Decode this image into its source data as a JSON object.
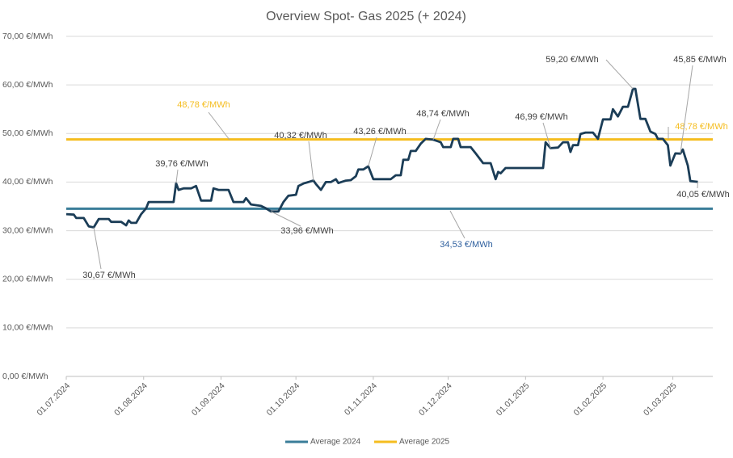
{
  "chart_data": {
    "type": "line",
    "title": "Overview Spot- Gas 2025 (+ 2024)",
    "xlim": [
      "01.07.2024",
      "17.03.2025"
    ],
    "xticks": [
      "01.07.2024",
      "01.08.2024",
      "01.09.2024",
      "01.10.2024",
      "01.11.2024",
      "01.12.2024",
      "01.01.2025",
      "01.02.2025",
      "01.03.2025"
    ],
    "ylim": [
      0,
      70
    ],
    "yticks": [
      {
        "value": 0,
        "label": "0,00 €/MWh"
      },
      {
        "value": 10,
        "label": "10,00 €/MWh"
      },
      {
        "value": 20,
        "label": "20,00 €/MWh"
      },
      {
        "value": 30,
        "label": "30,00 €/MWh"
      },
      {
        "value": 40,
        "label": "40,00 €/MWh"
      },
      {
        "value": 50,
        "label": "50,00 €/MWh"
      },
      {
        "value": 60,
        "label": "60,00 €/MWh"
      },
      {
        "value": 70,
        "label": "70,00 €/MWh"
      }
    ],
    "grid": true,
    "series": [
      {
        "color": "#1b3d57",
        "x": [
          "01.07.2024",
          "04.07.2024",
          "05.07.2024",
          "08.07.2024",
          "10.07.2024",
          "12.07.2024",
          "14.07.2024",
          "18.07.2024",
          "19.07.2024",
          "23.07.2024",
          "25.07.2024",
          "26.07.2024",
          "27.07.2024",
          "29.07.2024",
          "31.07.2024",
          "02.08.2024",
          "03.08.2024",
          "13.08.2024",
          "14.08.2024",
          "15.08.2024",
          "17.08.2024",
          "20.08.2024",
          "22.08.2024",
          "24.08.2024",
          "28.08.2024",
          "29.08.2024",
          "31.08.2024",
          "04.09.2024",
          "06.09.2024",
          "10.09.2024",
          "11.09.2024",
          "13.09.2024",
          "17.09.2024",
          "19.09.2024",
          "21.09.2024",
          "24.09.2024",
          "26.09.2024",
          "28.09.2024",
          "01.10.2024",
          "02.10.2024",
          "04.10.2024",
          "08.10.2024",
          "09.10.2024",
          "11.10.2024",
          "13.10.2024",
          "15.10.2024",
          "17.10.2024",
          "18.10.2024",
          "21.10.2024",
          "23.10.2024",
          "25.10.2024",
          "26.10.2024",
          "28.10.2024",
          "30.10.2024",
          "01.11.2024",
          "08.11.2024",
          "10.11.2024",
          "12.11.2024",
          "13.11.2024",
          "15.11.2024",
          "16.11.2024",
          "18.11.2024",
          "20.11.2024",
          "22.11.2024",
          "25.11.2024",
          "28.11.2024",
          "29.11.2024",
          "02.12.2024",
          "03.12.2024",
          "05.12.2024",
          "06.12.2024",
          "10.12.2024",
          "12.12.2024",
          "15.12.2024",
          "18.12.2024",
          "20.12.2024",
          "21.12.2024",
          "22.12.2024",
          "24.12.2024",
          "08.01.2025",
          "09.01.2025",
          "11.01.2025",
          "14.01.2025",
          "16.01.2025",
          "18.01.2025",
          "19.01.2025",
          "20.01.2025",
          "22.01.2025",
          "23.01.2025",
          "25.01.2025",
          "28.01.2025",
          "30.01.2025",
          "01.02.2025",
          "04.02.2025",
          "05.02.2025",
          "07.02.2025",
          "09.02.2025",
          "11.02.2025",
          "13.02.2025",
          "14.02.2025",
          "16.02.2025",
          "18.02.2025",
          "20.02.2025",
          "22.02.2025",
          "23.02.2025",
          "25.02.2025",
          "27.02.2025",
          "28.02.2025",
          "02.03.2025",
          "04.03.2025",
          "05.03.2025",
          "07.03.2025",
          "08.03.2025",
          "11.03.2025"
        ],
        "values": [
          33.4,
          33.3,
          32.6,
          32.6,
          30.9,
          30.67,
          32.4,
          32.4,
          31.8,
          31.8,
          31.1,
          32.1,
          31.6,
          31.6,
          33.4,
          34.6,
          35.9,
          35.9,
          39.76,
          38.4,
          38.7,
          38.7,
          39.2,
          36.2,
          36.2,
          38.7,
          38.4,
          38.4,
          35.9,
          35.9,
          36.7,
          35.4,
          35.1,
          34.6,
          33.96,
          33.96,
          35.9,
          37.2,
          37.4,
          39.2,
          39.7,
          40.32,
          39.6,
          38.4,
          40.0,
          40.0,
          40.6,
          39.8,
          40.3,
          40.4,
          41.2,
          42.6,
          42.6,
          43.26,
          40.6,
          40.6,
          41.4,
          41.4,
          44.6,
          44.6,
          46.4,
          46.4,
          47.9,
          48.9,
          48.74,
          48.2,
          47.2,
          47.2,
          48.9,
          48.9,
          47.2,
          47.2,
          45.9,
          43.9,
          43.9,
          40.6,
          42.1,
          41.8,
          42.9,
          42.9,
          48.2,
          46.99,
          47.1,
          48.2,
          48.2,
          46.2,
          47.6,
          47.6,
          49.9,
          50.2,
          50.2,
          48.9,
          52.9,
          52.9,
          55.0,
          53.5,
          55.5,
          55.5,
          59.2,
          59.2,
          53.0,
          53.0,
          50.4,
          49.9,
          48.9,
          48.9,
          47.6,
          43.4,
          45.9,
          45.85,
          46.7,
          43.4,
          40.2,
          40.05
        ]
      }
    ],
    "reference_lines": [
      {
        "name": "Average 2024",
        "color": "#3a7d99",
        "label_color": "#2e5f9e",
        "value": 34.53,
        "value_labels": [
          "34,53 €/MWh"
        ]
      },
      {
        "name": "Average 2025",
        "color": "#f5bd1f",
        "label_color": "#f5bd1f",
        "value": 48.78,
        "value_labels": [
          "48,78 €/MWh",
          "48,78 €/MWh"
        ]
      }
    ],
    "annotations": [
      {
        "text": "30,67 €/MWh",
        "x": "12.07.2024",
        "value": 30.67
      },
      {
        "text": "39,76 €/MWh",
        "x": "14.08.2024",
        "value": 39.76
      },
      {
        "text": "33,96 €/MWh",
        "x": "21.09.2024",
        "value": 33.96
      },
      {
        "text": "40,32 €/MWh",
        "x": "08.10.2024",
        "value": 40.32
      },
      {
        "text": "43,26 €/MWh",
        "x": "30.10.2024",
        "value": 43.26
      },
      {
        "text": "48,74 €/MWh",
        "x": "25.11.2024",
        "value": 48.74
      },
      {
        "text": "46,99 €/MWh",
        "x": "11.01.2025",
        "value": 46.99
      },
      {
        "text": "59,20 €/MWh",
        "x": "13.02.2025",
        "value": 59.2
      },
      {
        "text": "45,85 €/MWh",
        "x": "04.03.2025",
        "value": 45.85
      },
      {
        "text": "40,05 €/MWh",
        "x": "11.03.2025",
        "value": 40.05
      }
    ],
    "legend": "bottom"
  }
}
